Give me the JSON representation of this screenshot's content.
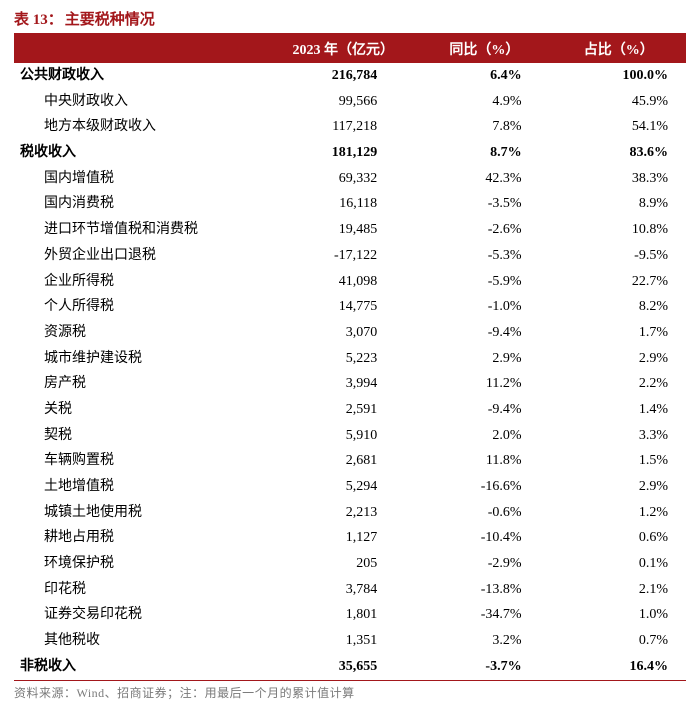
{
  "title_prefix": "表 13：",
  "title_text": "主要税种情况",
  "columns": [
    "",
    "2023 年（亿元）",
    "同比（%）",
    "占比（%）"
  ],
  "colwidths": [
    "38%",
    "22%",
    "20%",
    "20%"
  ],
  "rows": [
    {
      "label": "公共财政收入",
      "v1": "216,784",
      "v2": "6.4%",
      "v3": "100.0%",
      "bold": true,
      "indent": 0
    },
    {
      "label": "中央财政收入",
      "v1": "99,566",
      "v2": "4.9%",
      "v3": "45.9%",
      "bold": false,
      "indent": 1
    },
    {
      "label": "地方本级财政收入",
      "v1": "117,218",
      "v2": "7.8%",
      "v3": "54.1%",
      "bold": false,
      "indent": 1
    },
    {
      "label": "税收收入",
      "v1": "181,129",
      "v2": "8.7%",
      "v3": "83.6%",
      "bold": true,
      "indent": 0
    },
    {
      "label": "国内增值税",
      "v1": "69,332",
      "v2": "42.3%",
      "v3": "38.3%",
      "bold": false,
      "indent": 1
    },
    {
      "label": "国内消费税",
      "v1": "16,118",
      "v2": "-3.5%",
      "v3": "8.9%",
      "bold": false,
      "indent": 1
    },
    {
      "label": "进口环节增值税和消费税",
      "v1": "19,485",
      "v2": "-2.6%",
      "v3": "10.8%",
      "bold": false,
      "indent": 1
    },
    {
      "label": "外贸企业出口退税",
      "v1": "-17,122",
      "v2": "-5.3%",
      "v3": "-9.5%",
      "bold": false,
      "indent": 1
    },
    {
      "label": "企业所得税",
      "v1": "41,098",
      "v2": "-5.9%",
      "v3": "22.7%",
      "bold": false,
      "indent": 1
    },
    {
      "label": "个人所得税",
      "v1": "14,775",
      "v2": "-1.0%",
      "v3": "8.2%",
      "bold": false,
      "indent": 1
    },
    {
      "label": "资源税",
      "v1": "3,070",
      "v2": "-9.4%",
      "v3": "1.7%",
      "bold": false,
      "indent": 1
    },
    {
      "label": "城市维护建设税",
      "v1": "5,223",
      "v2": "2.9%",
      "v3": "2.9%",
      "bold": false,
      "indent": 1
    },
    {
      "label": "房产税",
      "v1": "3,994",
      "v2": "11.2%",
      "v3": "2.2%",
      "bold": false,
      "indent": 1
    },
    {
      "label": "关税",
      "v1": "2,591",
      "v2": "-9.4%",
      "v3": "1.4%",
      "bold": false,
      "indent": 1
    },
    {
      "label": "契税",
      "v1": "5,910",
      "v2": "2.0%",
      "v3": "3.3%",
      "bold": false,
      "indent": 1
    },
    {
      "label": "车辆购置税",
      "v1": "2,681",
      "v2": "11.8%",
      "v3": "1.5%",
      "bold": false,
      "indent": 1
    },
    {
      "label": "土地增值税",
      "v1": "5,294",
      "v2": "-16.6%",
      "v3": "2.9%",
      "bold": false,
      "indent": 1
    },
    {
      "label": "城镇土地使用税",
      "v1": "2,213",
      "v2": "-0.6%",
      "v3": "1.2%",
      "bold": false,
      "indent": 1
    },
    {
      "label": "耕地占用税",
      "v1": "1,127",
      "v2": "-10.4%",
      "v3": "0.6%",
      "bold": false,
      "indent": 1
    },
    {
      "label": "环境保护税",
      "v1": "205",
      "v2": "-2.9%",
      "v3": "0.1%",
      "bold": false,
      "indent": 1
    },
    {
      "label": "印花税",
      "v1": "3,784",
      "v2": "-13.8%",
      "v3": "2.1%",
      "bold": false,
      "indent": 1
    },
    {
      "label": "证券交易印花税",
      "v1": "1,801",
      "v2": "-34.7%",
      "v3": "1.0%",
      "bold": false,
      "indent": 1
    },
    {
      "label": "其他税收",
      "v1": "1,351",
      "v2": "3.2%",
      "v3": "0.7%",
      "bold": false,
      "indent": 1
    },
    {
      "label": "非税收入",
      "v1": "35,655",
      "v2": "-3.7%",
      "v3": "16.4%",
      "bold": true,
      "indent": 0
    }
  ],
  "footer": "资料来源：Wind、招商证券；注：用最后一个月的累计值计算",
  "colors": {
    "accent": "#a3171b",
    "text": "#000000",
    "footer_text": "#7a7a7a",
    "background": "#ffffff",
    "header_text": "#ffffff"
  }
}
